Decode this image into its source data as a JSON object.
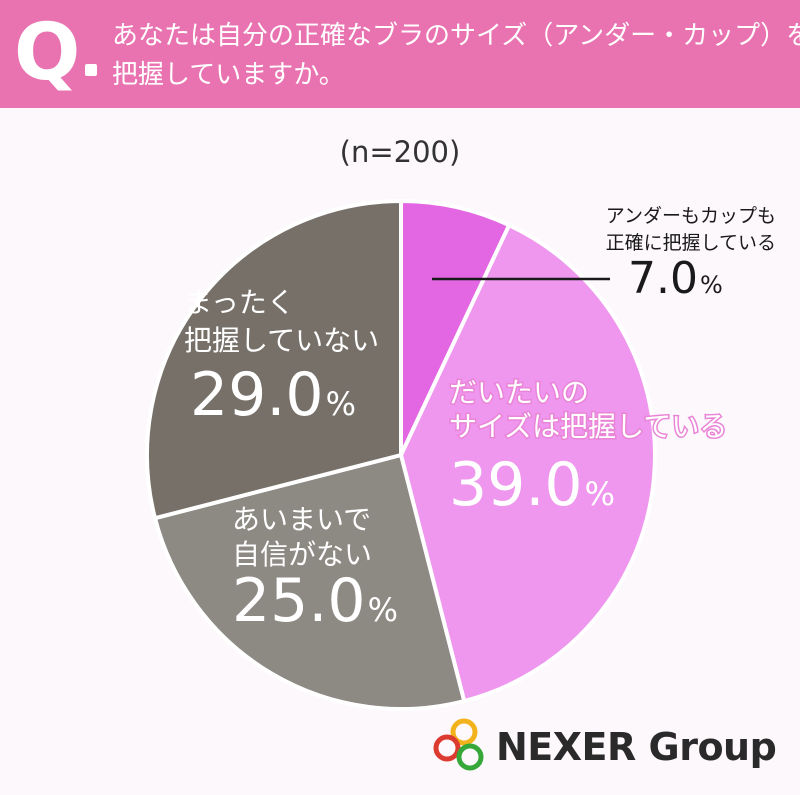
{
  "question": {
    "mark": "Q",
    "lines": [
      "あなたは自分の正確なブラのサイズ（アンダー・カップ）を",
      "把握していますか。"
    ]
  },
  "sample_size": "(n=200)",
  "colors": {
    "header": "#e973b0",
    "slice_exact": "#e366e3",
    "slice_mostly": "#ef96ee",
    "slice_unsure": "#8d8983",
    "slice_not": "#767069"
  },
  "chart_data": {
    "type": "pie",
    "title": "",
    "unit": "%",
    "slices": [
      {
        "label_lines": [
          "アンダーもカップも",
          "正確に把握している"
        ],
        "value": 7.0,
        "value_text": "7.0",
        "pct": "%"
      },
      {
        "label_lines": [
          "だいたいの",
          "サイズは把握している"
        ],
        "value": 39.0,
        "value_text": "39.0",
        "pct": "%"
      },
      {
        "label_lines": [
          "あいまいで",
          "自信がない"
        ],
        "value": 25.0,
        "value_text": "25.0",
        "pct": "%"
      },
      {
        "label_lines": [
          "まったく",
          "把握していない"
        ],
        "value": 29.0,
        "value_text": "29.0",
        "pct": "%"
      }
    ]
  },
  "logo": {
    "text": "NEXER Group",
    "icon": "three-rings-logo-icon"
  }
}
